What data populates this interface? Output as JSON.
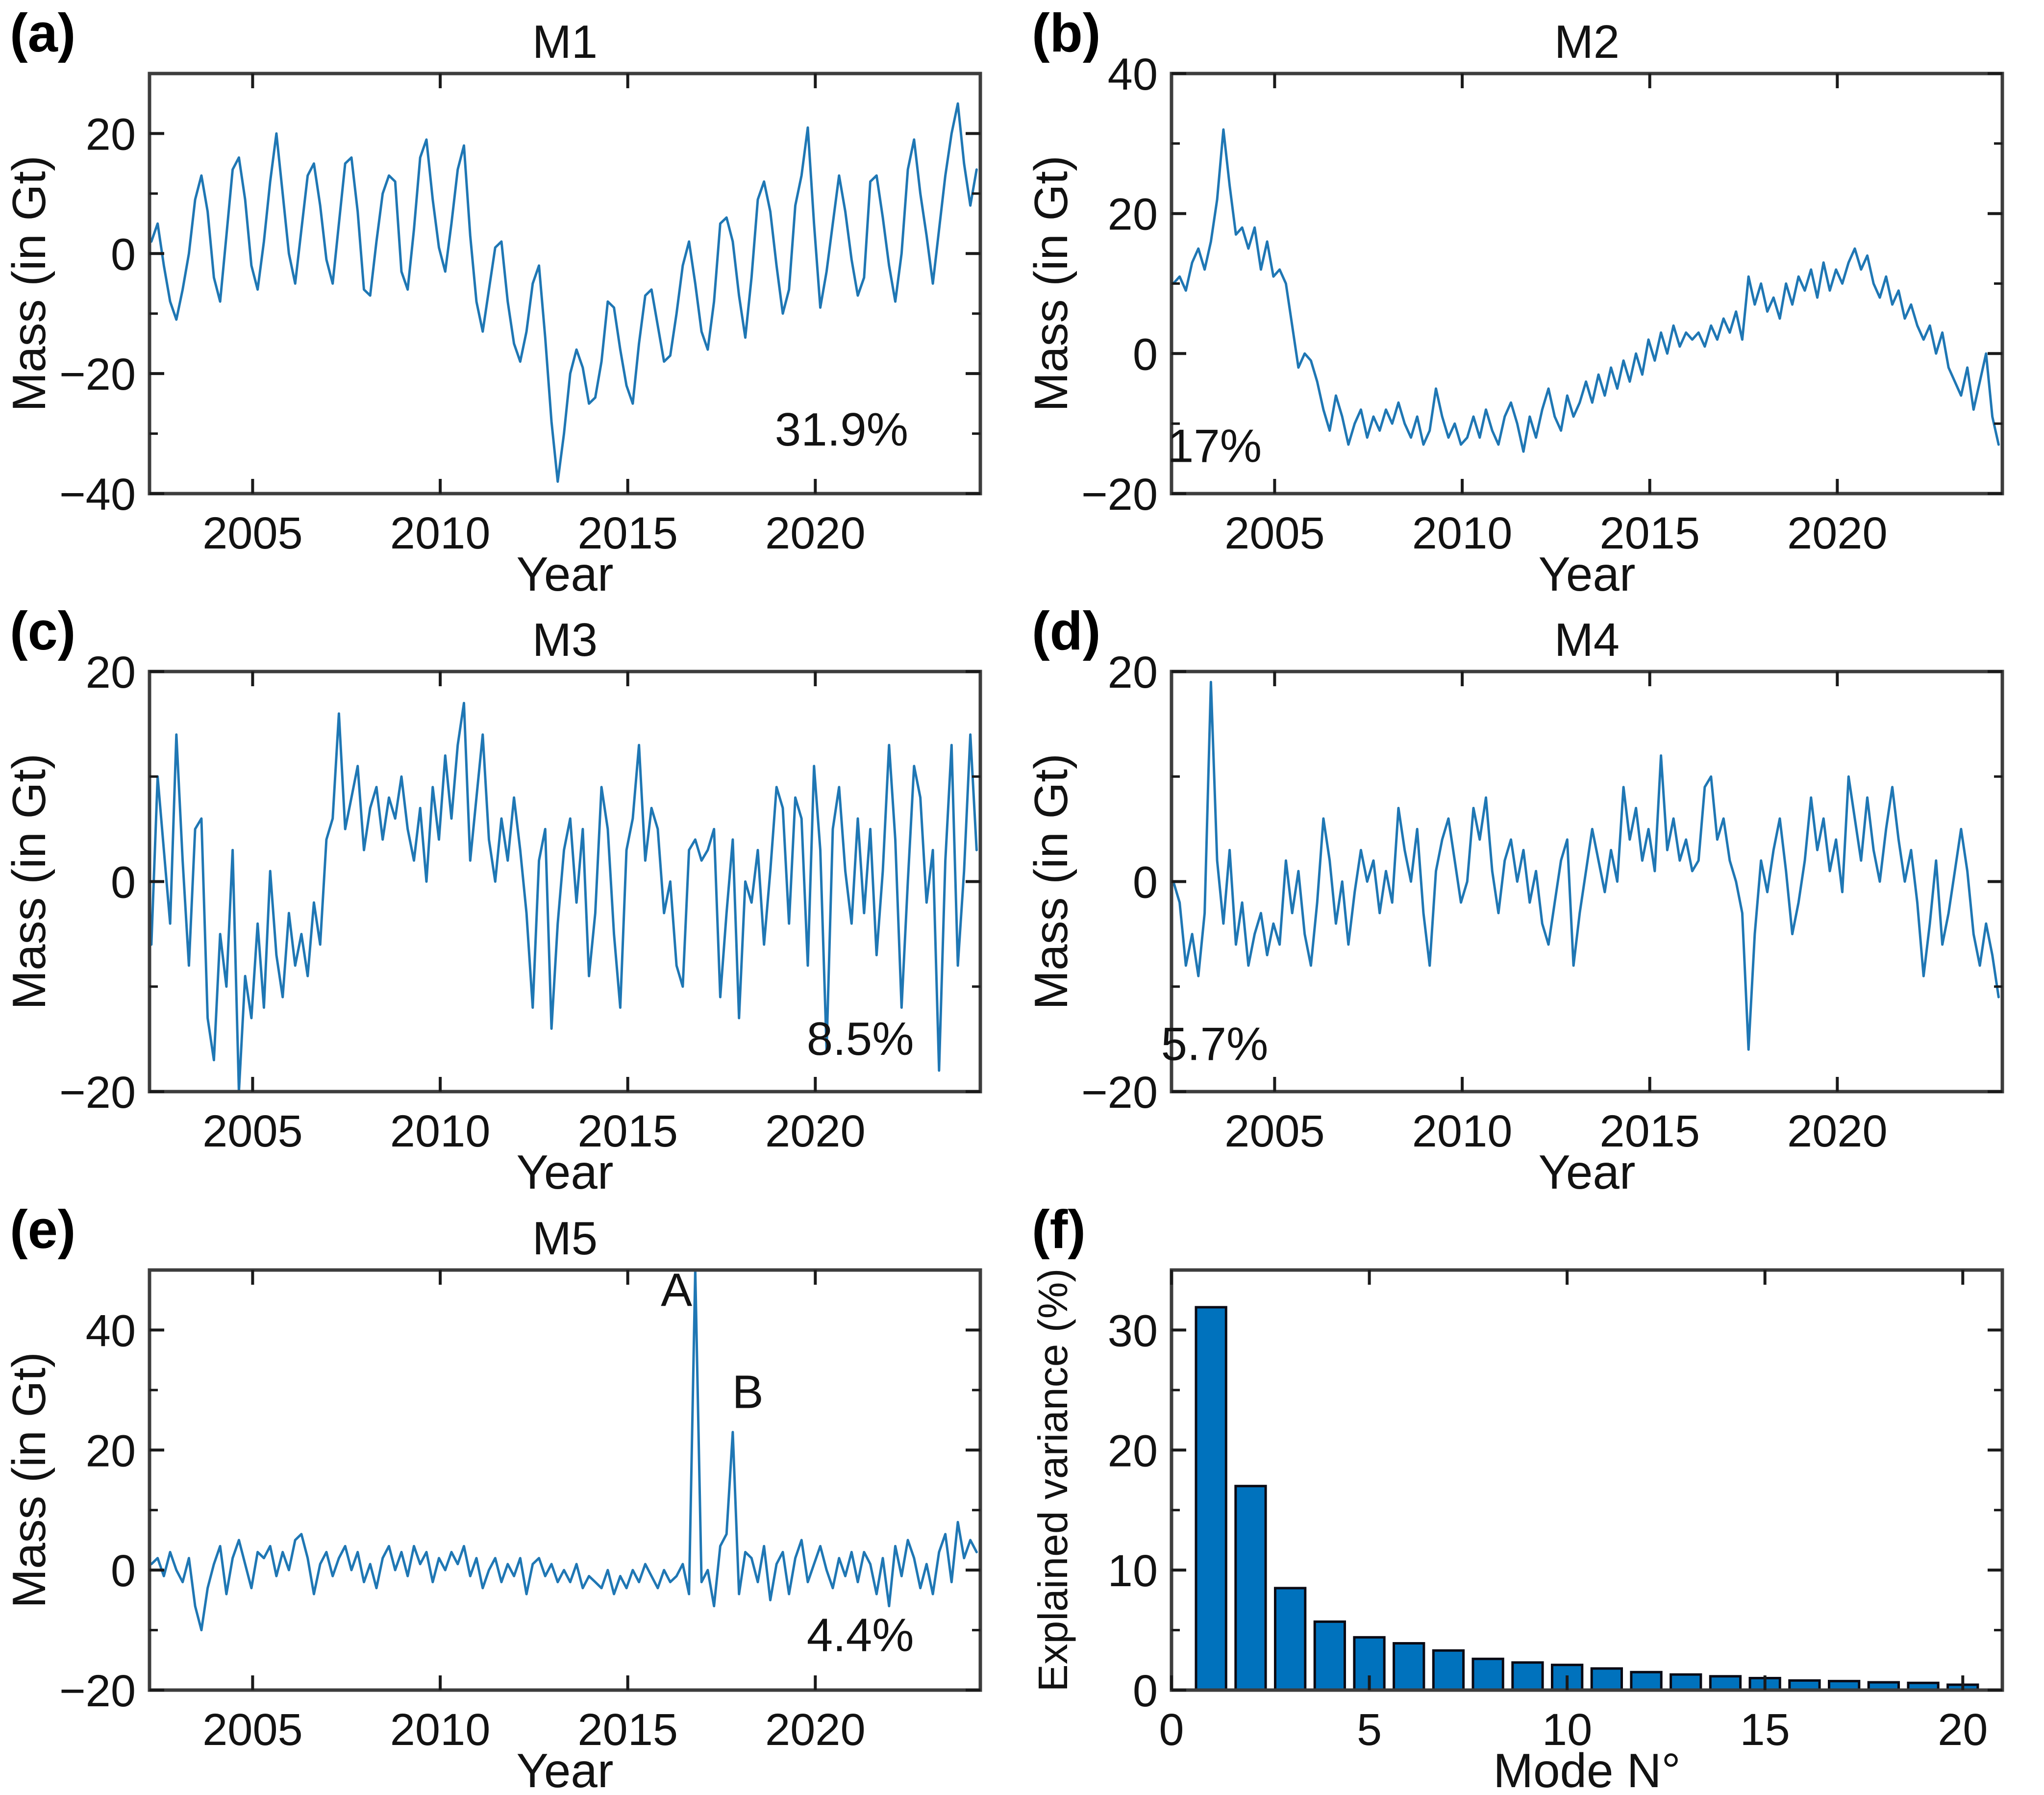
{
  "colors": {
    "line": "#1f77b4",
    "bar_fill": "#0072bd",
    "bar_edge": "#0a0a14",
    "axis": "#3d3d3d",
    "tick": "#1a1a1a",
    "text": "#121212"
  },
  "chart_data": [
    {
      "panel_label": "(a)",
      "type": "line",
      "title": "M1",
      "xlabel": "Year",
      "ylabel": "Mass (in Gt)",
      "xlim": [
        2002.25,
        2024.4
      ],
      "ylim": [
        -40,
        30
      ],
      "xticks": [
        2005,
        2010,
        2015,
        2020
      ],
      "yticks": [
        -40,
        -20,
        0,
        20
      ],
      "x_start": 2002.3,
      "x_step": 0.166667,
      "values": [
        2,
        5,
        -2,
        -8,
        -11,
        -6,
        0,
        9,
        13,
        7,
        -4,
        -8,
        3,
        14,
        16,
        9,
        -2,
        -6,
        2,
        12,
        20,
        10,
        0,
        -5,
        4,
        13,
        15,
        8,
        -1,
        -5,
        5,
        15,
        16,
        7,
        -6,
        -7,
        2,
        10,
        13,
        12,
        -3,
        -6,
        4,
        16,
        19,
        9,
        1,
        -3,
        5,
        14,
        18,
        3,
        -8,
        -13,
        -6,
        1,
        2,
        -8,
        -15,
        -18,
        -13,
        -5,
        -2,
        -14,
        -28,
        -38,
        -30,
        -20,
        -16,
        -19,
        -25,
        -24,
        -18,
        -8,
        -9,
        -16,
        -22,
        -25,
        -15,
        -7,
        -6,
        -12,
        -18,
        -17,
        -10,
        -2,
        2,
        -5,
        -13,
        -16,
        -8,
        5,
        6,
        2,
        -7,
        -14,
        -4,
        9,
        12,
        7,
        -2,
        -10,
        -6,
        8,
        13,
        21,
        5,
        -9,
        -3,
        5,
        13,
        7,
        -1,
        -7,
        -4,
        12,
        13,
        6,
        -2,
        -8,
        0,
        14,
        19,
        10,
        3,
        -5,
        4,
        13,
        20,
        25,
        15,
        8,
        14
      ],
      "annotations": [
        {
          "text": "31.9%",
          "x": 2020.7,
          "y": -32
        }
      ]
    },
    {
      "panel_label": "(b)",
      "type": "line",
      "title": "M2",
      "xlabel": "Year",
      "ylabel": "Mass (in Gt)",
      "xlim": [
        2002.25,
        2024.4
      ],
      "ylim": [
        -20,
        40
      ],
      "xticks": [
        2005,
        2010,
        2015,
        2020
      ],
      "yticks": [
        -20,
        0,
        20,
        40
      ],
      "x_start": 2002.3,
      "x_step": 0.166667,
      "values": [
        10,
        11,
        9,
        13,
        15,
        12,
        16,
        22,
        32,
        24,
        17,
        18,
        15,
        18,
        12,
        16,
        11,
        12,
        10,
        4,
        -2,
        0,
        -1,
        -4,
        -8,
        -11,
        -6,
        -9,
        -13,
        -10,
        -8,
        -12,
        -9,
        -11,
        -8,
        -10,
        -7,
        -10,
        -12,
        -9,
        -13,
        -11,
        -5,
        -9,
        -12,
        -10,
        -13,
        -12,
        -9,
        -12,
        -8,
        -11,
        -13,
        -9,
        -7,
        -10,
        -14,
        -9,
        -12,
        -8,
        -5,
        -9,
        -11,
        -6,
        -9,
        -7,
        -4,
        -7,
        -3,
        -6,
        -2,
        -5,
        -1,
        -4,
        0,
        -3,
        2,
        -1,
        3,
        0,
        4,
        1,
        3,
        2,
        3,
        1,
        4,
        2,
        5,
        3,
        6,
        2,
        11,
        7,
        10,
        6,
        8,
        5,
        10,
        7,
        11,
        9,
        12,
        8,
        13,
        9,
        12,
        10,
        13,
        15,
        12,
        14,
        10,
        8,
        11,
        7,
        9,
        5,
        7,
        4,
        2,
        4,
        0,
        3,
        -2,
        -4,
        -6,
        -2,
        -8,
        -4,
        0,
        -9,
        -13
      ],
      "annotations": [
        {
          "text": "17%",
          "x": 2003.4,
          "y": -15.5
        }
      ]
    },
    {
      "panel_label": "(c)",
      "type": "line",
      "title": "M3",
      "xlabel": "Year",
      "ylabel": "Mass (in Gt)",
      "xlim": [
        2002.25,
        2024.4
      ],
      "ylim": [
        -20,
        20
      ],
      "xticks": [
        2005,
        2010,
        2015,
        2020
      ],
      "yticks": [
        -20,
        0,
        20
      ],
      "x_start": 2002.3,
      "x_step": 0.166667,
      "values": [
        -6,
        10,
        3,
        -4,
        14,
        2,
        -8,
        5,
        6,
        -13,
        -17,
        -5,
        -10,
        3,
        -20,
        -9,
        -13,
        -4,
        -12,
        1,
        -7,
        -11,
        -3,
        -8,
        -5,
        -9,
        -2,
        -6,
        4,
        6,
        16,
        5,
        8,
        11,
        3,
        7,
        9,
        4,
        8,
        6,
        10,
        5,
        2,
        7,
        0,
        9,
        4,
        12,
        6,
        13,
        17,
        2,
        8,
        14,
        4,
        0,
        6,
        2,
        8,
        3,
        -3,
        -12,
        2,
        5,
        -14,
        -4,
        3,
        6,
        -2,
        5,
        -9,
        -3,
        9,
        5,
        -5,
        -12,
        3,
        6,
        13,
        2,
        7,
        5,
        -3,
        0,
        -8,
        -10,
        3,
        4,
        2,
        3,
        5,
        -11,
        -3,
        4,
        -13,
        0,
        -2,
        3,
        -6,
        1,
        9,
        7,
        -4,
        8,
        6,
        -8,
        11,
        3,
        -16,
        5,
        9,
        1,
        -4,
        6,
        -3,
        5,
        -7,
        1,
        13,
        4,
        -12,
        0,
        11,
        8,
        -2,
        3,
        -18,
        2,
        13,
        -8,
        1,
        14,
        3
      ],
      "annotations": [
        {
          "text": "8.5%",
          "x": 2021.2,
          "y": -16.5
        }
      ]
    },
    {
      "panel_label": "(d)",
      "type": "line",
      "title": "M4",
      "xlabel": "Year",
      "ylabel": "Mass (in Gt)",
      "xlim": [
        2002.25,
        2024.4
      ],
      "ylim": [
        -20,
        20
      ],
      "xticks": [
        2005,
        2010,
        2015,
        2020
      ],
      "yticks": [
        -20,
        0,
        20
      ],
      "x_start": 2002.3,
      "x_step": 0.166667,
      "values": [
        0,
        -2,
        -8,
        -5,
        -9,
        -3,
        19,
        2,
        -4,
        3,
        -6,
        -2,
        -8,
        -5,
        -3,
        -7,
        -4,
        -6,
        2,
        -3,
        1,
        -5,
        -8,
        -2,
        6,
        2,
        -4,
        0,
        -6,
        -1,
        3,
        0,
        2,
        -3,
        1,
        -2,
        7,
        3,
        0,
        5,
        -3,
        -8,
        1,
        4,
        6,
        2,
        -2,
        0,
        7,
        4,
        8,
        1,
        -3,
        2,
        4,
        0,
        3,
        -2,
        1,
        -4,
        -6,
        -2,
        2,
        4,
        -8,
        -3,
        1,
        5,
        2,
        -1,
        3,
        0,
        9,
        4,
        7,
        2,
        5,
        1,
        12,
        3,
        6,
        2,
        4,
        1,
        2,
        9,
        10,
        4,
        6,
        2,
        0,
        -3,
        -16,
        -5,
        2,
        -1,
        3,
        6,
        1,
        -5,
        -2,
        2,
        8,
        3,
        6,
        1,
        4,
        -1,
        10,
        6,
        2,
        8,
        3,
        0,
        5,
        9,
        4,
        0,
        3,
        -2,
        -9,
        -4,
        2,
        -6,
        -3,
        1,
        5,
        1,
        -5,
        -8,
        -4,
        -7,
        -11
      ],
      "annotations": [
        {
          "text": "5.7%",
          "x": 2003.4,
          "y": -17
        }
      ]
    },
    {
      "panel_label": "(e)",
      "type": "line",
      "title": "M5",
      "xlabel": "Year",
      "ylabel": "Mass (in Gt)",
      "xlim": [
        2002.25,
        2024.4
      ],
      "ylim": [
        -20,
        50
      ],
      "xticks": [
        2005,
        2010,
        2015,
        2020
      ],
      "yticks": [
        -20,
        0,
        20,
        40
      ],
      "x_start": 2002.3,
      "x_step": 0.166667,
      "values": [
        1,
        2,
        -1,
        3,
        0,
        -2,
        2,
        -6,
        -10,
        -3,
        1,
        4,
        -4,
        2,
        5,
        1,
        -3,
        3,
        2,
        4,
        -1,
        3,
        0,
        5,
        6,
        2,
        -4,
        1,
        3,
        -1,
        2,
        4,
        0,
        3,
        -2,
        1,
        -3,
        2,
        4,
        0,
        3,
        -1,
        4,
        1,
        3,
        -2,
        2,
        0,
        3,
        1,
        4,
        -1,
        2,
        -3,
        0,
        2,
        -2,
        1,
        -1,
        2,
        -4,
        1,
        2,
        -1,
        1,
        -2,
        0,
        -2,
        1,
        -3,
        -1,
        -2,
        -3,
        0,
        -4,
        -1,
        -3,
        0,
        -2,
        1,
        -1,
        -3,
        0,
        -2,
        -1,
        1,
        -4,
        50,
        -2,
        0,
        -6,
        4,
        6,
        23,
        -4,
        3,
        2,
        -2,
        4,
        -5,
        1,
        3,
        -4,
        2,
        5,
        -2,
        1,
        4,
        0,
        -3,
        2,
        -1,
        3,
        -2,
        3,
        1,
        -4,
        2,
        -6,
        4,
        -1,
        5,
        2,
        -3,
        1,
        -4,
        3,
        6,
        -2,
        8,
        2,
        5,
        3
      ],
      "annotations": [
        {
          "text": "4.4%",
          "x": 2021.2,
          "y": -13.5
        },
        {
          "text": "A",
          "x": 2016.3,
          "y": 44
        },
        {
          "text": "B",
          "x": 2018.2,
          "y": 27
        }
      ]
    },
    {
      "panel_label": "(f)",
      "type": "bar",
      "title": "",
      "xlabel": "Mode N°",
      "ylabel": "Explained variance (%)",
      "xlim": [
        0,
        21
      ],
      "ylim": [
        0,
        35
      ],
      "xticks": [
        0,
        5,
        10,
        15,
        20
      ],
      "yticks": [
        0,
        10,
        20,
        30
      ],
      "categories": [
        1,
        2,
        3,
        4,
        5,
        6,
        7,
        8,
        9,
        10,
        11,
        12,
        13,
        14,
        15,
        16,
        17,
        18,
        19,
        20
      ],
      "values": [
        31.9,
        17.0,
        8.5,
        5.7,
        4.4,
        3.9,
        3.3,
        2.6,
        2.3,
        2.1,
        1.8,
        1.5,
        1.3,
        1.15,
        1.0,
        0.8,
        0.75,
        0.65,
        0.6,
        0.45
      ],
      "annotations": []
    }
  ]
}
